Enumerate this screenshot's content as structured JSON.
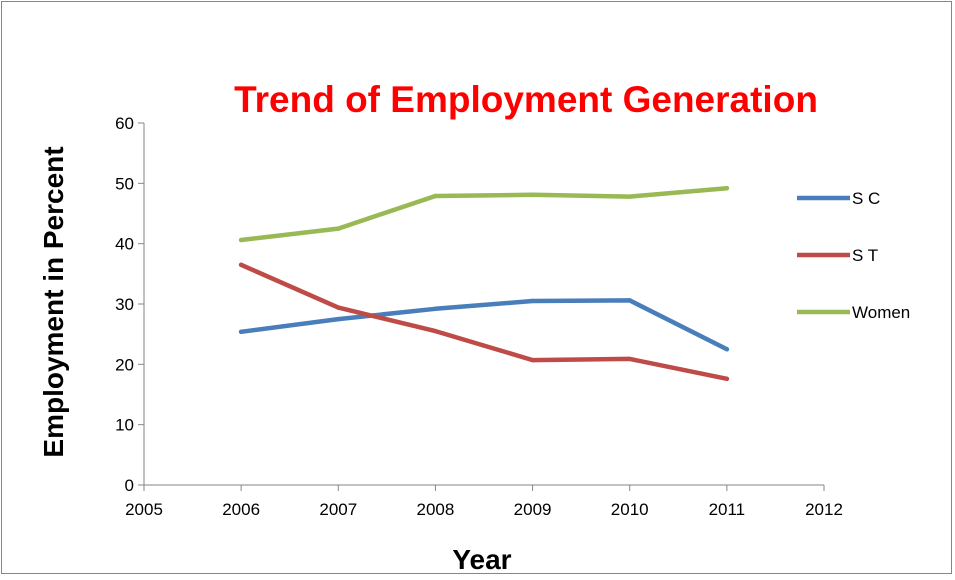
{
  "chart_data": {
    "type": "line",
    "title": "Trend of Employment Generation",
    "xlabel": "Year",
    "ylabel": "Employment in Percent",
    "xlim": [
      2005,
      2012
    ],
    "ylim": [
      0,
      60
    ],
    "x_ticks": [
      "2005",
      "2006",
      "2007",
      "2008",
      "2009",
      "2010",
      "2011",
      "2012"
    ],
    "y_ticks": [
      "0",
      "10",
      "20",
      "30",
      "40",
      "50",
      "60"
    ],
    "x": [
      2006,
      2007,
      2008,
      2009,
      2010,
      2011
    ],
    "grid": false,
    "legend_position": "right",
    "series": [
      {
        "name": "S C",
        "color": "#4a7ebb",
        "values": [
          25.4,
          27.5,
          29.2,
          30.5,
          30.6,
          22.5
        ]
      },
      {
        "name": "S T",
        "color": "#be4b48",
        "values": [
          36.5,
          29.4,
          25.5,
          20.7,
          20.9,
          17.6
        ]
      },
      {
        "name": "Women",
        "color": "#98b954",
        "values": [
          40.6,
          42.5,
          47.9,
          48.1,
          47.8,
          49.2
        ]
      }
    ],
    "title_color": "#ff0000"
  }
}
